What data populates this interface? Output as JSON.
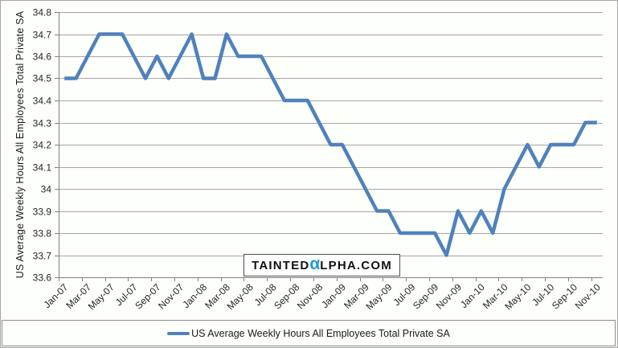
{
  "watermark": {
    "text_before_alpha": "TAINTED",
    "alpha_char": "α",
    "text_after_alpha": "LPHA.COM",
    "alpha_color": "#1E9CD7"
  },
  "colors": {
    "line": "#4F81BD",
    "gridline": "#A6A6A6",
    "axis": "#808080",
    "tick_text": "#262626",
    "background": "#FDFFFB"
  },
  "chart_data": {
    "type": "line",
    "title": "",
    "xlabel": "",
    "ylabel": "US Average Weekly Hours All Employees Total Private SA",
    "ylim": [
      33.6,
      34.8
    ],
    "ytick_step": 0.1,
    "grid": true,
    "legend_position": "bottom",
    "x_tick_label_every": 2,
    "y_tick_labels": [
      "34.8",
      "34.7",
      "34.6",
      "34.5",
      "34.4",
      "34.3",
      "34.2",
      "34.1",
      "34",
      "33.9",
      "33.8",
      "33.7",
      "33.6"
    ],
    "x_tick_labels": [
      "Jan-07",
      "Mar-07",
      "May-07",
      "Jul-07",
      "Sep-07",
      "Nov-07",
      "Jan-08",
      "Mar-08",
      "May-08",
      "Jul-08",
      "Sep-08",
      "Nov-08",
      "Jan-09",
      "Mar-09",
      "May-09",
      "Jul-09",
      "Sep-09",
      "Nov-09",
      "Jan-10",
      "Mar-10",
      "May-10",
      "Jul-10",
      "Sep-10",
      "Nov-10"
    ],
    "categories": [
      "Jan-07",
      "Feb-07",
      "Mar-07",
      "Apr-07",
      "May-07",
      "Jun-07",
      "Jul-07",
      "Aug-07",
      "Sep-07",
      "Oct-07",
      "Nov-07",
      "Dec-07",
      "Jan-08",
      "Feb-08",
      "Mar-08",
      "Apr-08",
      "May-08",
      "Jun-08",
      "Jul-08",
      "Aug-08",
      "Sep-08",
      "Oct-08",
      "Nov-08",
      "Dec-08",
      "Jan-09",
      "Feb-09",
      "Mar-09",
      "Apr-09",
      "May-09",
      "Jun-09",
      "Jul-09",
      "Aug-09",
      "Sep-09",
      "Oct-09",
      "Nov-09",
      "Dec-09",
      "Jan-10",
      "Feb-10",
      "Mar-10",
      "Apr-10",
      "May-10",
      "Jun-10",
      "Jul-10",
      "Aug-10",
      "Sep-10",
      "Oct-10",
      "Nov-10"
    ],
    "series": [
      {
        "name": "US Average Weekly Hours All Employees Total Private SA",
        "color": "#4F81BD",
        "values": [
          34.5,
          34.5,
          34.6,
          34.7,
          34.7,
          34.7,
          34.6,
          34.5,
          34.6,
          34.5,
          34.6,
          34.7,
          34.5,
          34.5,
          34.7,
          34.6,
          34.6,
          34.6,
          34.5,
          34.4,
          34.4,
          34.4,
          34.3,
          34.2,
          34.2,
          34.1,
          34.0,
          33.9,
          33.9,
          33.8,
          33.8,
          33.8,
          33.8,
          33.7,
          33.9,
          33.8,
          33.9,
          33.8,
          34.0,
          34.1,
          34.2,
          34.1,
          34.2,
          34.2,
          34.2,
          34.3,
          34.3
        ]
      }
    ]
  }
}
